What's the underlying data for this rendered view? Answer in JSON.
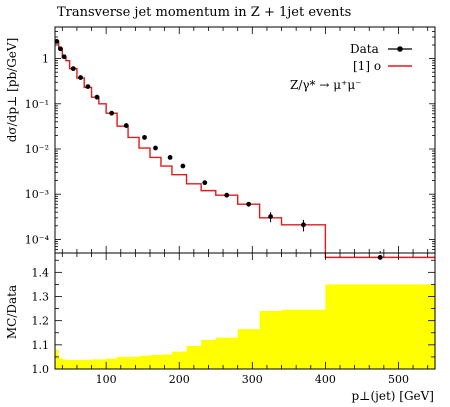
{
  "chart_data": [
    {
      "type": "line",
      "title": "Transverse jet momentum in Z + 1jet events",
      "ylabel": "dσ/dp⊥ [pb/GeV]",
      "xlabel": "",
      "xlim": [
        30,
        550
      ],
      "ylim": [
        5e-05,
        5
      ],
      "yscale": "log",
      "ytick_labels": [
        "1",
        "10⁻¹",
        "10⁻²",
        "10⁻³",
        "10⁻⁴"
      ],
      "ytick_values": [
        1,
        0.1,
        0.01,
        0.001,
        0.0001
      ],
      "legend": {
        "placement": "top-right",
        "entries": [
          "Data",
          "[1] o"
        ],
        "annotation": "Z/γ* → μ⁺μ⁻"
      },
      "bin_edges": [
        30,
        35,
        40,
        45,
        50,
        60,
        70,
        80,
        90,
        100,
        115,
        130,
        145,
        160,
        175,
        190,
        210,
        230,
        250,
        280,
        310,
        340,
        400,
        550
      ],
      "mc_values": [
        2.3,
        1.6,
        1.05,
        0.9,
        0.6,
        0.37,
        0.23,
        0.14,
        0.1,
        0.062,
        0.032,
        0.018,
        0.0105,
        0.0065,
        0.0042,
        0.0027,
        0.0017,
        0.0012,
        0.00095,
        0.0006,
        0.0003,
        0.00021,
        4e-05
      ],
      "data_points": [
        {
          "x": 32.5,
          "y": 2.4,
          "err": 0.15
        },
        {
          "x": 37.5,
          "y": 1.65,
          "err": 0.1
        },
        {
          "x": 42.5,
          "y": 1.1,
          "err": 0.08
        },
        {
          "x": 55,
          "y": 0.6,
          "err": 0.04
        },
        {
          "x": 65,
          "y": 0.38,
          "err": 0.03
        },
        {
          "x": 75,
          "y": 0.24,
          "err": 0.02
        },
        {
          "x": 87.5,
          "y": 0.14,
          "err": 0.01
        },
        {
          "x": 107.5,
          "y": 0.062,
          "err": 0.005
        },
        {
          "x": 127.5,
          "y": 0.033,
          "err": 0.003
        },
        {
          "x": 152.5,
          "y": 0.018,
          "err": 0.0015
        },
        {
          "x": 167.5,
          "y": 0.0105,
          "err": 0.001
        },
        {
          "x": 187.5,
          "y": 0.0065,
          "err": 0.0006
        },
        {
          "x": 205,
          "y": 0.0042,
          "err": 0.0004
        },
        {
          "x": 235,
          "y": 0.0018,
          "err": 0.00018
        },
        {
          "x": 265,
          "y": 0.00095,
          "err": 0.0001
        },
        {
          "x": 295,
          "y": 0.0006,
          "err": 7e-05
        },
        {
          "x": 325,
          "y": 0.00032,
          "err": 8e-05
        },
        {
          "x": 370,
          "y": 0.00021,
          "err": 6e-05
        },
        {
          "x": 475,
          "y": 4e-05,
          "err": 1.5e-05
        }
      ]
    },
    {
      "type": "area",
      "ylabel": "MC/Data",
      "xlabel": "p⊥(jet) [GeV]",
      "xlim": [
        30,
        550
      ],
      "ylim": [
        1.0,
        1.48
      ],
      "xtick_labels": [
        "100",
        "200",
        "300",
        "400",
        "500"
      ],
      "xtick_values": [
        100,
        200,
        300,
        400,
        500
      ],
      "ytick_labels": [
        "1.0",
        "1.1",
        "1.2",
        "1.3",
        "1.4"
      ],
      "ytick_values": [
        1.0,
        1.1,
        1.2,
        1.3,
        1.4
      ],
      "color": "#ffff00",
      "bin_edges": [
        30,
        35,
        40,
        45,
        50,
        60,
        70,
        80,
        90,
        100,
        115,
        130,
        145,
        160,
        175,
        190,
        210,
        230,
        250,
        280,
        310,
        340,
        400,
        550
      ],
      "band_upper": [
        1.08,
        1.045,
        1.04,
        1.038,
        1.038,
        1.038,
        1.038,
        1.04,
        1.04,
        1.043,
        1.05,
        1.05,
        1.055,
        1.058,
        1.06,
        1.072,
        1.095,
        1.12,
        1.13,
        1.165,
        1.24,
        1.245,
        1.35
      ]
    }
  ]
}
